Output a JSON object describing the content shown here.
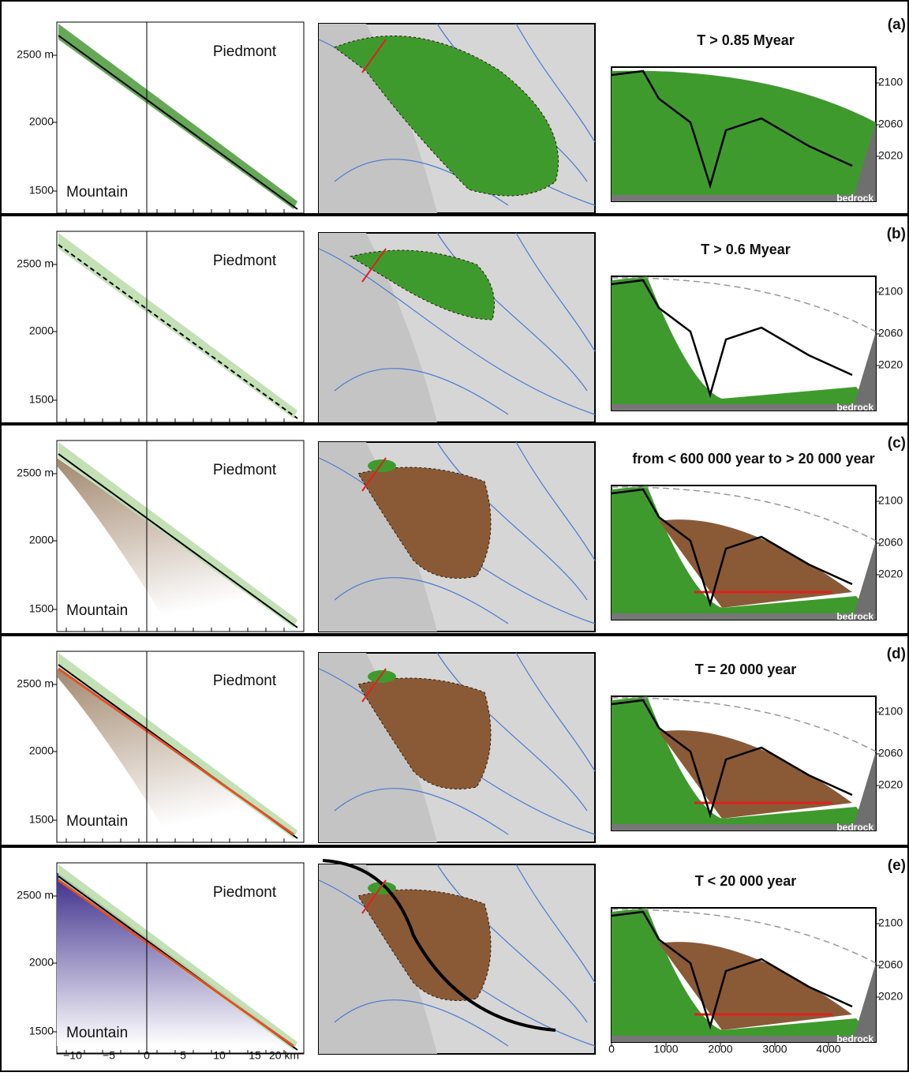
{
  "figure": {
    "panels": [
      {
        "label": "(a)",
        "title": "T > 0.85 Myear",
        "left_yticks": [
          "2500 m",
          "2000",
          "1500"
        ],
        "piedmont": "Piedmont",
        "mountain": "Mountain",
        "right_yticks": [
          "2100",
          "2060",
          "2020"
        ],
        "bedrock": "bedrock"
      },
      {
        "label": "(b)",
        "title": "T > 0.6 Myear",
        "left_yticks": [
          "2500 m",
          "2000",
          "1500"
        ],
        "piedmont": "Piedmont",
        "right_yticks": [
          "2100",
          "2060",
          "2020"
        ],
        "bedrock": "bedrock"
      },
      {
        "label": "(c)",
        "title": "from < 600 000 year to > 20 000 year",
        "left_yticks": [
          "2500 m",
          "2000",
          "1500"
        ],
        "piedmont": "Piedmont",
        "mountain": "Mountain",
        "right_yticks": [
          "2100",
          "2060",
          "2020"
        ],
        "bedrock": "bedrock"
      },
      {
        "label": "(d)",
        "title": "T = 20 000 year",
        "left_yticks": [
          "2500 m",
          "2000",
          "1500"
        ],
        "piedmont": "Piedmont",
        "mountain": "Mountain",
        "right_yticks": [
          "2100",
          "2060",
          "2020"
        ],
        "bedrock": "bedrock"
      },
      {
        "label": "(e)",
        "title": "T < 20 000 year",
        "left_yticks": [
          "2500 m",
          "2000",
          "1500"
        ],
        "piedmont": "Piedmont",
        "mountain": "Mountain",
        "right_yticks": [
          "2100",
          "2060",
          "2020"
        ],
        "bedrock": "bedrock"
      }
    ],
    "left_xticks": [
      "−10",
      "−5",
      "0",
      "5",
      "10",
      "15",
      "20 km"
    ],
    "right_xticks": [
      "0",
      "1000",
      "2000",
      "3000",
      "4000"
    ]
  }
}
